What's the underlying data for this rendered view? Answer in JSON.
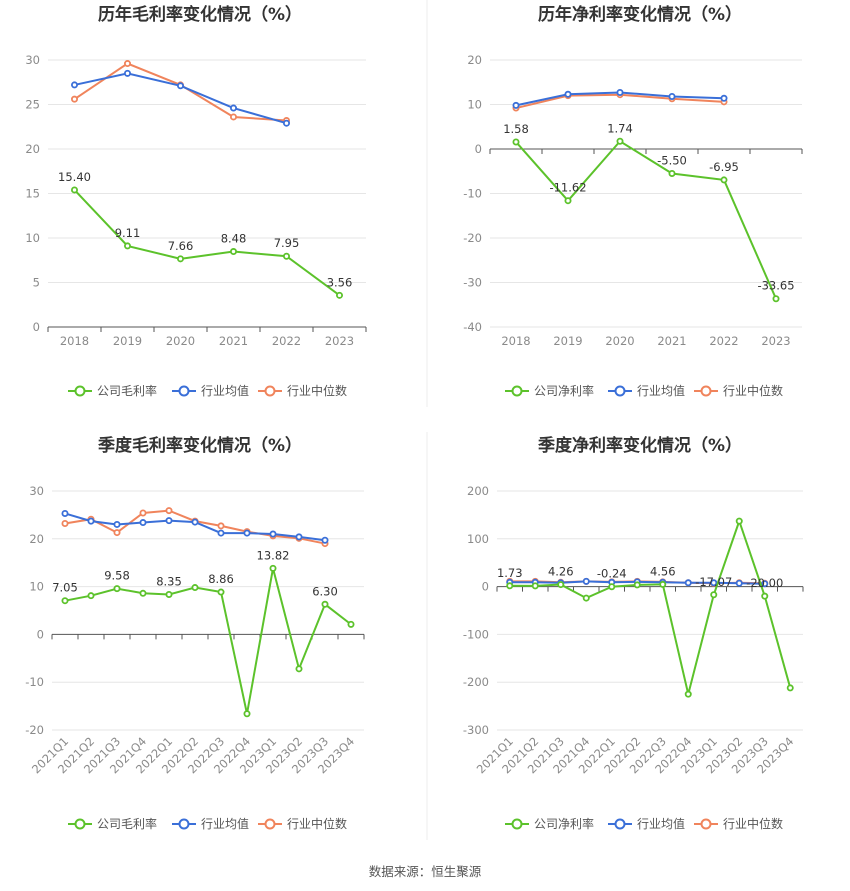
{
  "source_text": "数据来源：恒生聚源",
  "colors": {
    "company": "#5cc22b",
    "industry_avg": "#3a6fd8",
    "industry_median": "#f0845c"
  },
  "chart_data": [
    {
      "id": "annual-gross",
      "type": "line",
      "title": "历年毛利率变化情况（%）",
      "categories": [
        "2018",
        "2019",
        "2020",
        "2021",
        "2022",
        "2023"
      ],
      "ylim": [
        0,
        30
      ],
      "yticks": [
        0,
        5,
        10,
        15,
        20,
        25,
        30
      ],
      "grid": true,
      "legend_position": "bottom",
      "series": [
        {
          "name": "公司毛利率",
          "color": "#5cc22b",
          "values": [
            15.4,
            9.11,
            7.66,
            8.48,
            7.95,
            3.56
          ],
          "labels": [
            "15.40",
            "9.11",
            "7.66",
            "8.48",
            "7.95",
            "3.56"
          ]
        },
        {
          "name": "行业均值",
          "color": "#3a6fd8",
          "values": [
            27.2,
            28.5,
            27.1,
            24.6,
            22.9,
            null
          ]
        },
        {
          "name": "行业中位数",
          "color": "#f0845c",
          "values": [
            25.6,
            29.6,
            27.2,
            23.6,
            23.2,
            null
          ]
        }
      ]
    },
    {
      "id": "annual-net",
      "type": "line",
      "title": "历年净利率变化情况（%）",
      "categories": [
        "2018",
        "2019",
        "2020",
        "2021",
        "2022",
        "2023"
      ],
      "ylim": [
        -40,
        20
      ],
      "yticks": [
        -40,
        -30,
        -20,
        -10,
        0,
        10,
        20
      ],
      "grid": true,
      "legend_position": "bottom",
      "series": [
        {
          "name": "公司净利率",
          "color": "#5cc22b",
          "values": [
            1.58,
            -11.62,
            1.74,
            -5.5,
            -6.95,
            -33.65
          ],
          "labels": [
            "1.58",
            "-11.62",
            "1.74",
            "-5.50",
            "-6.95",
            "-33.65"
          ]
        },
        {
          "name": "行业均值",
          "color": "#3a6fd8",
          "values": [
            9.8,
            12.3,
            12.7,
            11.8,
            11.4,
            null
          ]
        },
        {
          "name": "行业中位数",
          "color": "#f0845c",
          "values": [
            9.2,
            12.0,
            12.2,
            11.3,
            10.6,
            null
          ]
        }
      ]
    },
    {
      "id": "quarterly-gross",
      "type": "line",
      "title": "季度毛利率变化情况（%）",
      "categories": [
        "2021Q1",
        "2021Q2",
        "2021Q3",
        "2021Q4",
        "2022Q1",
        "2022Q2",
        "2022Q3",
        "2022Q4",
        "2023Q1",
        "2023Q2",
        "2023Q3",
        "2023Q4"
      ],
      "ylim": [
        -20,
        30
      ],
      "yticks": [
        -20,
        -10,
        0,
        10,
        20,
        30
      ],
      "grid": true,
      "legend_position": "bottom",
      "series": [
        {
          "name": "公司毛利率",
          "color": "#5cc22b",
          "values": [
            7.05,
            8.1,
            9.58,
            8.6,
            8.35,
            9.8,
            8.86,
            -16.6,
            13.82,
            -7.2,
            6.3,
            2.1
          ],
          "labels": [
            "7.05",
            "",
            "9.58",
            "",
            "8.35",
            "",
            "8.86",
            "",
            "13.82",
            "",
            "6.30",
            ""
          ]
        },
        {
          "name": "行业均值",
          "color": "#3a6fd8",
          "values": [
            25.3,
            23.7,
            23.0,
            23.4,
            23.8,
            23.5,
            21.2,
            21.2,
            21.0,
            20.4,
            19.7,
            null
          ]
        },
        {
          "name": "行业中位数",
          "color": "#f0845c",
          "values": [
            23.2,
            24.1,
            21.3,
            25.4,
            25.9,
            23.7,
            22.7,
            21.5,
            20.6,
            20.1,
            19.0,
            null
          ]
        }
      ]
    },
    {
      "id": "quarterly-net",
      "type": "line",
      "title": "季度净利率变化情况（%）",
      "categories": [
        "2021Q1",
        "2021Q2",
        "2021Q3",
        "2021Q4",
        "2022Q1",
        "2022Q2",
        "2022Q3",
        "2022Q4",
        "2023Q1",
        "2023Q2",
        "2023Q3",
        "2023Q4"
      ],
      "ylim": [
        -300,
        200
      ],
      "yticks": [
        -300,
        -200,
        -100,
        0,
        100,
        200
      ],
      "grid": true,
      "legend_position": "bottom",
      "series": [
        {
          "name": "公司净利率",
          "color": "#5cc22b",
          "values": [
            1.73,
            1.5,
            4.26,
            -24,
            -0.24,
            3.5,
            4.56,
            -225,
            -17.07,
            137,
            -20.0,
            -212
          ],
          "labels": [
            "1.73",
            "",
            "4.26",
            "",
            "-0.24",
            "",
            "4.56",
            "",
            "-17.07",
            "",
            "-20.00",
            ""
          ]
        },
        {
          "name": "行业均值",
          "color": "#3a6fd8",
          "values": [
            9,
            9,
            8,
            11,
            9,
            10,
            9,
            8,
            8,
            7,
            6,
            null
          ]
        },
        {
          "name": "行业中位数",
          "color": "#f0845c",
          "values": [
            11,
            11,
            9,
            11,
            10,
            11,
            10,
            8,
            7,
            8,
            7,
            null
          ]
        }
      ]
    }
  ]
}
